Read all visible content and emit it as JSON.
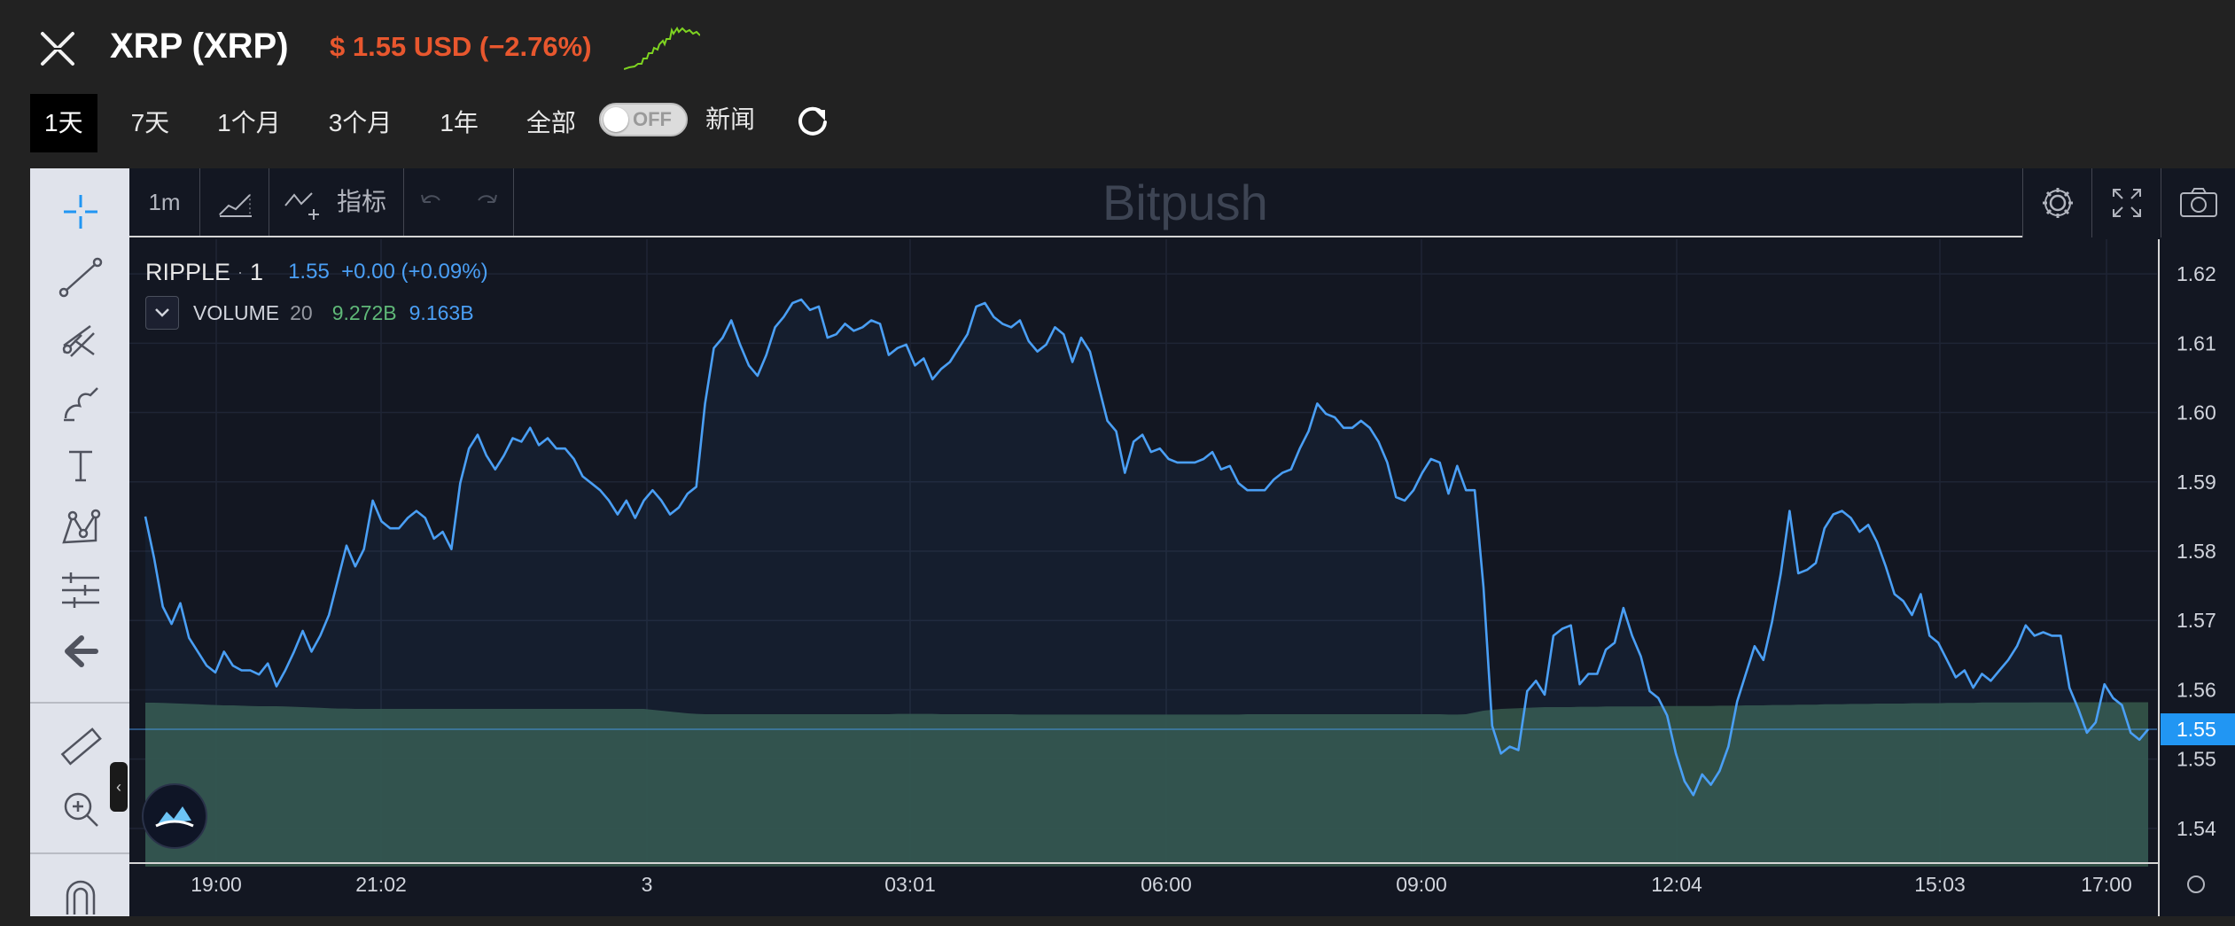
{
  "header": {
    "coin_name": "XRP (XRP)",
    "price_text": "$ 1.55 USD (−2.76%)",
    "price_color": "#e8572e",
    "ranges": [
      {
        "label": "1天",
        "active": true
      },
      {
        "label": "7天",
        "active": false
      },
      {
        "label": "1个月",
        "active": false
      },
      {
        "label": "3个月",
        "active": false
      },
      {
        "label": "1年",
        "active": false
      },
      {
        "label": "全部",
        "active": false
      }
    ],
    "toggle_label": "OFF",
    "news_label": "新闻"
  },
  "toolbar": {
    "interval": "1m",
    "indicators_label": "指标",
    "watermark": "Bitpush"
  },
  "legend": {
    "symbol": "RIPPLE",
    "interval": "1",
    "price_change": "1.55  +0.00 (+0.09%)",
    "volume_label": "VOLUME",
    "volume_length": "20",
    "volume_value_1": "9.272B",
    "volume_value_2": "9.163B"
  },
  "colors": {
    "line": "#4a9ff5",
    "volume_fill": "#335248",
    "volume_text": "#5fb878",
    "price_badge": "#2196f3",
    "background": "#131722"
  },
  "chart_data": {
    "type": "line",
    "ylim": [
      1.535,
      1.625
    ],
    "y_ticks": [
      "1.62",
      "1.61",
      "1.60",
      "1.59",
      "1.58",
      "1.57",
      "1.56",
      "1.55",
      "1.54"
    ],
    "current_price_label": "1.55",
    "x_ticks": [
      "19:00",
      "21:02",
      "3",
      "03:01",
      "06:00",
      "09:00",
      "12:04",
      "15:03",
      "17:00"
    ],
    "series": [
      {
        "values": [
          1.585,
          1.579,
          1.572,
          1.5695,
          1.5725,
          1.5675,
          1.5655,
          1.5635,
          1.5625,
          1.5655,
          1.5635,
          1.5628,
          1.5628,
          1.5622,
          1.5638,
          1.5605,
          1.5628,
          1.5655,
          1.5685,
          1.5655,
          1.5678,
          1.5708,
          1.5758,
          1.5808,
          1.5778,
          1.5803,
          1.5873,
          1.5843,
          1.5833,
          1.5833,
          1.5848,
          1.5858,
          1.5848,
          1.5818,
          1.5828,
          1.5803,
          1.5898,
          1.5948,
          1.5968,
          1.5938,
          1.5918,
          1.5938,
          1.5963,
          1.5958,
          1.5978,
          1.5953,
          1.5963,
          1.5948,
          1.5948,
          1.5933,
          1.5908,
          1.5898,
          1.5888,
          1.5873,
          1.5853,
          1.5873,
          1.5848,
          1.5873,
          1.5888,
          1.5873,
          1.5853,
          1.5863,
          1.5883,
          1.5893,
          1.6013,
          1.6093,
          1.6108,
          1.6133,
          1.6098,
          1.6068,
          1.6053,
          1.6083,
          1.6123,
          1.6138,
          1.6158,
          1.6163,
          1.6148,
          1.6153,
          1.6108,
          1.6113,
          1.6128,
          1.6118,
          1.6123,
          1.6133,
          1.6128,
          1.6083,
          1.6093,
          1.6098,
          1.6068,
          1.6078,
          1.6048,
          1.6063,
          1.6073,
          1.6093,
          1.6113,
          1.6153,
          1.6158,
          1.6138,
          1.6128,
          1.6123,
          1.6133,
          1.6103,
          1.6088,
          1.6098,
          1.6123,
          1.6113,
          1.6073,
          1.6108,
          1.6088,
          1.6038,
          1.5988,
          1.5973,
          1.5913,
          1.5958,
          1.5968,
          1.5943,
          1.5948,
          1.5933,
          1.5928,
          1.5928,
          1.5928,
          1.5933,
          1.5943,
          1.5918,
          1.5923,
          1.5898,
          1.5888,
          1.5888,
          1.5888,
          1.5903,
          1.5913,
          1.5918,
          1.5948,
          1.5973,
          1.6013,
          1.5998,
          1.5993,
          1.5978,
          1.5978,
          1.5988,
          1.5978,
          1.5958,
          1.5928,
          1.5878,
          1.5873,
          1.5888,
          1.5913,
          1.5933,
          1.5928,
          1.5883,
          1.5923,
          1.5888,
          1.5888,
          1.5748,
          1.5548,
          1.5508,
          1.5518,
          1.5513,
          1.5598,
          1.5613,
          1.5593,
          1.5678,
          1.5688,
          1.5693,
          1.5608,
          1.5623,
          1.5623,
          1.5658,
          1.5668,
          1.5718,
          1.5678,
          1.5648,
          1.5598,
          1.5588,
          1.5563,
          1.5508,
          1.5468,
          1.5448,
          1.5478,
          1.5463,
          1.5483,
          1.5518,
          1.5583,
          1.5623,
          1.5663,
          1.5643,
          1.5698,
          1.5768,
          1.5858,
          1.5768,
          1.5773,
          1.5783,
          1.5833,
          1.5853,
          1.5858,
          1.5848,
          1.5828,
          1.5838,
          1.5813,
          1.5778,
          1.5738,
          1.5728,
          1.5708,
          1.5738,
          1.5678,
          1.5668,
          1.5643,
          1.5618,
          1.5628,
          1.5603,
          1.5623,
          1.5613,
          1.5628,
          1.5643,
          1.5663,
          1.5693,
          1.5678,
          1.5683,
          1.5678,
          1.5678,
          1.5603,
          1.5573,
          1.5538,
          1.5553,
          1.5608,
          1.5588,
          1.5578,
          1.5538,
          1.5528,
          1.5543
        ]
      },
      {
        "name": "VOLUME",
        "values": [
          9.25,
          9.25,
          9.24,
          9.22,
          9.2,
          9.18,
          9.16,
          9.14,
          9.12,
          9.1,
          9.1,
          9.08,
          9.06,
          9.05,
          9.05,
          9.05,
          9.04,
          9.02,
          9.0,
          8.98,
          8.96,
          8.94,
          8.92,
          8.92,
          8.9,
          8.9,
          8.9,
          8.9,
          8.9,
          8.9,
          8.9,
          8.9,
          8.9,
          8.9,
          8.9,
          8.9,
          8.9,
          8.9,
          8.9,
          8.9,
          8.9,
          8.9,
          8.9,
          8.9,
          8.9,
          8.9,
          8.9,
          8.9,
          8.9,
          8.9,
          8.9,
          8.9,
          8.9,
          8.9,
          8.9,
          8.9,
          8.9,
          8.9,
          8.85,
          8.8,
          8.75,
          8.7,
          8.65,
          8.62,
          8.6,
          8.6,
          8.6,
          8.6,
          8.6,
          8.6,
          8.6,
          8.6,
          8.6,
          8.6,
          8.6,
          8.6,
          8.6,
          8.6,
          8.6,
          8.6,
          8.6,
          8.6,
          8.6,
          8.6,
          8.6,
          8.6,
          8.62,
          8.62,
          8.62,
          8.62,
          8.62,
          8.6,
          8.6,
          8.6,
          8.6,
          8.6,
          8.6,
          8.6,
          8.6,
          8.6,
          8.58,
          8.58,
          8.58,
          8.58,
          8.58,
          8.58,
          8.58,
          8.58,
          8.58,
          8.58,
          8.58,
          8.58,
          8.58,
          8.58,
          8.58,
          8.58,
          8.58,
          8.58,
          8.58,
          8.58,
          8.58,
          8.58,
          8.58,
          8.58,
          8.58,
          8.58,
          8.6,
          8.6,
          8.6,
          8.6,
          8.6,
          8.6,
          8.6,
          8.6,
          8.6,
          8.6,
          8.6,
          8.6,
          8.6,
          8.6,
          8.6,
          8.6,
          8.6,
          8.6,
          8.6,
          8.6,
          8.6,
          8.6,
          8.6,
          8.58,
          8.58,
          8.6,
          8.7,
          8.8,
          8.85,
          8.9,
          8.92,
          8.94,
          8.96,
          8.98,
          9.0,
          9.0,
          9.0,
          9.0,
          9.02,
          9.02,
          9.02,
          9.04,
          9.04,
          9.04,
          9.04,
          9.04,
          9.04,
          9.06,
          9.06,
          9.06,
          9.06,
          9.06,
          9.06,
          9.06,
          9.08,
          9.08,
          9.08,
          9.1,
          9.1,
          9.1,
          9.12,
          9.12,
          9.12,
          9.14,
          9.14,
          9.14,
          9.16,
          9.16,
          9.16,
          9.18,
          9.18,
          9.18,
          9.2,
          9.2,
          9.2,
          9.2,
          9.22,
          9.22,
          9.22,
          9.22,
          9.24,
          9.24,
          9.24,
          9.24,
          9.26,
          9.26,
          9.26,
          9.26,
          9.26,
          9.26,
          9.27,
          9.27,
          9.27,
          9.27,
          9.27,
          9.272,
          9.272,
          9.272,
          9.272,
          9.272,
          9.272,
          9.272,
          9.272,
          9.272
        ]
      }
    ]
  }
}
